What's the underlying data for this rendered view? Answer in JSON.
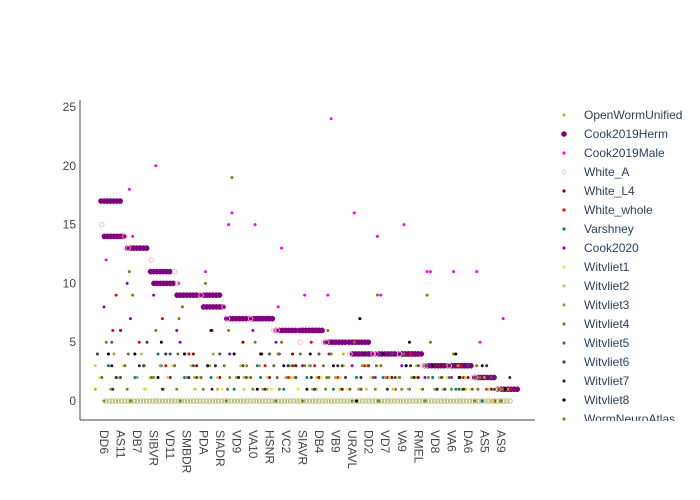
{
  "chart_data": {
    "type": "scatter",
    "title": "",
    "xlabel": "",
    "ylabel": "",
    "ylim": [
      -1,
      25.5
    ],
    "yticks": [
      0,
      5,
      10,
      15,
      20,
      25
    ],
    "grid": false,
    "legend_position": "right",
    "tick_labels": [
      "DD6",
      "AS11",
      "DB7",
      "SIBVR",
      "VD11",
      "SMBDR",
      "PDA",
      "SIADR",
      "VD9",
      "VA10",
      "HSNR",
      "VC2",
      "SIAVR",
      "DB4",
      "VB9",
      "URAVL",
      "DD2",
      "VD7",
      "VA9",
      "RMEL",
      "VD8",
      "VA6",
      "DA6",
      "AS5",
      "AS9"
    ],
    "series": [
      {
        "name": "OpenWormUnified",
        "color": "#bcbd22",
        "symbol": "circle-small",
        "values": [
          1,
          2,
          4,
          1,
          2,
          3,
          2,
          1,
          3,
          2,
          1,
          2,
          3,
          2,
          1,
          4,
          3,
          2,
          1,
          2,
          3,
          2,
          1,
          2,
          1
        ]
      },
      {
        "name": "Cook2019Herm",
        "color": "#800080",
        "symbol": "circle",
        "values": [
          17,
          14,
          13,
          11,
          10,
          9,
          9,
          8,
          7,
          7,
          7,
          6,
          6,
          6,
          5,
          5,
          4,
          4,
          4,
          4,
          3,
          3,
          3,
          2,
          1
        ]
      },
      {
        "name": "Cook2019Male",
        "color": "#ff00ff",
        "symbol": "circle-small",
        "values": [
          12,
          18,
          14,
          20,
          10,
          8,
          11,
          15,
          16,
          15,
          8,
          13,
          9,
          9,
          24,
          16,
          14,
          9,
          15,
          11,
          11,
          11,
          11,
          5,
          7
        ]
      },
      {
        "name": "White_A",
        "color": "#ffb6c1",
        "symbol": "circle-open",
        "values": [
          15,
          14,
          13,
          12,
          11,
          10,
          9,
          8,
          7,
          7,
          6,
          6,
          5,
          5,
          5,
          4,
          4,
          4,
          4,
          3,
          3,
          3,
          2,
          2,
          1
        ]
      },
      {
        "name": "White_L4",
        "color": "#8b0000",
        "symbol": "circle-small",
        "values": [
          4,
          6,
          3,
          5,
          2,
          4,
          3,
          2,
          5,
          3,
          2,
          4,
          3,
          2,
          1,
          2,
          3,
          2,
          1,
          2,
          3,
          1,
          2,
          1,
          0
        ]
      },
      {
        "name": "White_whole",
        "color": "#ff0000",
        "symbol": "circle-small",
        "values": [
          6,
          9,
          5,
          7,
          3,
          4,
          6,
          3,
          2,
          4,
          3,
          2,
          5,
          3,
          2,
          1,
          3,
          2,
          4,
          2,
          1,
          3,
          2,
          1,
          1
        ]
      },
      {
        "name": "Varshney",
        "color": "#008080",
        "symbol": "circle-small",
        "values": [
          3,
          5,
          2,
          4,
          3,
          2,
          3,
          2,
          1,
          3,
          2,
          1,
          2,
          3,
          1,
          2,
          1,
          2,
          3,
          1,
          2,
          1,
          1,
          0,
          1
        ]
      },
      {
        "name": "Cook2020",
        "color": "#9400d3",
        "symbol": "circle-small",
        "values": [
          8,
          10,
          7,
          9,
          6,
          5,
          8,
          7,
          4,
          6,
          5,
          4,
          3,
          5,
          4,
          3,
          2,
          4,
          3,
          2,
          3,
          2,
          2,
          1,
          0
        ]
      },
      {
        "name": "Witvliet1",
        "color": "#f0e442",
        "symbol": "circle-small",
        "values": [
          2,
          3,
          1,
          2,
          3,
          1,
          2,
          1,
          3,
          2,
          1,
          2,
          1,
          2,
          3,
          1,
          2,
          1,
          2,
          1,
          1,
          2,
          1,
          0,
          1
        ]
      },
      {
        "name": "Witvliet2",
        "color": "#c8c864",
        "symbol": "circle-small",
        "values": [
          3,
          2,
          4,
          3,
          2,
          3,
          1,
          2,
          3,
          1,
          2,
          3,
          2,
          1,
          2,
          3,
          1,
          2,
          1,
          3,
          2,
          1,
          2,
          1,
          0
        ]
      },
      {
        "name": "Witvliet3",
        "color": "#a0a050",
        "symbol": "circle-small",
        "values": [
          1,
          4,
          2,
          3,
          1,
          2,
          3,
          4,
          2,
          3,
          1,
          2,
          3,
          1,
          2,
          1,
          3,
          2,
          1,
          2,
          1,
          3,
          1,
          2,
          1
        ]
      },
      {
        "name": "Witvliet4",
        "color": "#808000",
        "symbol": "circle-small",
        "values": [
          5,
          11,
          9,
          6,
          7,
          8,
          10,
          6,
          19,
          5,
          4,
          5,
          3,
          6,
          4,
          5,
          9,
          3,
          4,
          9,
          5,
          4,
          3,
          2,
          1
        ]
      },
      {
        "name": "Witvliet5",
        "color": "#6b6b3b",
        "symbol": "circle-small",
        "values": [
          2,
          3,
          4,
          2,
          3,
          4,
          2,
          3,
          1,
          2,
          3,
          2,
          4,
          3,
          2,
          1,
          2,
          3,
          2,
          1,
          3,
          2,
          1,
          2,
          1
        ]
      },
      {
        "name": "Witvliet6",
        "color": "#4a4a5a",
        "symbol": "circle-small",
        "values": [
          4,
          2,
          3,
          5,
          4,
          3,
          2,
          4,
          3,
          2,
          4,
          3,
          2,
          4,
          3,
          2,
          3,
          4,
          2,
          3,
          2,
          1,
          3,
          2,
          1
        ]
      },
      {
        "name": "Witvliet7",
        "color": "#2f2f2f",
        "symbol": "circle-small",
        "values": [
          1,
          2,
          3,
          1,
          4,
          2,
          1,
          3,
          2,
          4,
          1,
          3,
          2,
          1,
          3,
          2,
          4,
          1,
          3,
          2,
          1,
          2,
          1,
          3,
          2
        ]
      },
      {
        "name": "Witvliet8",
        "color": "#000000",
        "symbol": "circle-small",
        "values": [
          4,
          3,
          4,
          2,
          5,
          4,
          3,
          6,
          4,
          1,
          4,
          3,
          1,
          4,
          3,
          0,
          7,
          4,
          3,
          5,
          3,
          4,
          2,
          3,
          1
        ]
      },
      {
        "name": "WormNeuroAtlas",
        "color": "#6b8e23",
        "symbol": "circle-small",
        "values": [
          0,
          1,
          0,
          2,
          1,
          0,
          1,
          0,
          2,
          1,
          0,
          1,
          0,
          1,
          2,
          0,
          1,
          0,
          1,
          0,
          2,
          1,
          0,
          1,
          0
        ]
      }
    ]
  }
}
